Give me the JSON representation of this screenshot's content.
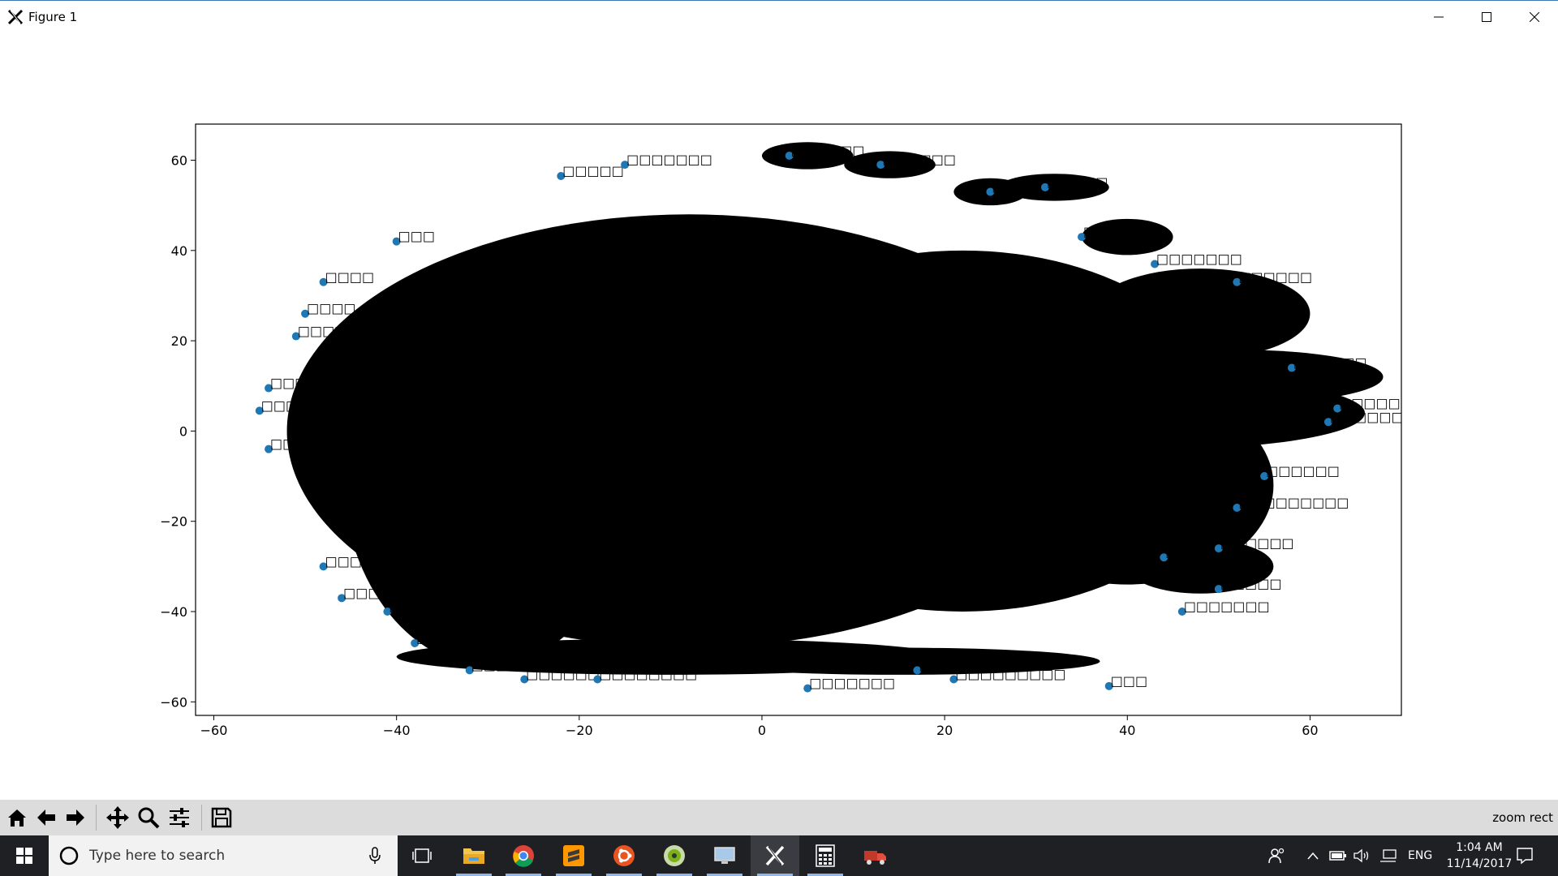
{
  "window": {
    "title": "Figure 1"
  },
  "chart_data": {
    "type": "scatter",
    "title": "",
    "xlabel": "",
    "ylabel": "",
    "xlim": [
      -62,
      70
    ],
    "ylim": [
      -63,
      68
    ],
    "xticks": [
      -60,
      -40,
      -20,
      0,
      20,
      40,
      60
    ],
    "yticks": [
      -60,
      -40,
      -20,
      0,
      20,
      40,
      60
    ],
    "xtick_labels": [
      "−60",
      "−40",
      "−20",
      "0",
      "20",
      "40",
      "60"
    ],
    "ytick_labels": [
      "−60",
      "−40",
      "−20",
      "0",
      "20",
      "40",
      "60"
    ],
    "marker_color": "#1f77b4",
    "label_color": "#000000",
    "grid": false,
    "points": [
      {
        "x": -55,
        "y": 4.5,
        "label": "□□□□□□"
      },
      {
        "x": -54,
        "y": 9.5,
        "label": "□□□□□"
      },
      {
        "x": -54,
        "y": -4,
        "label": "□□□□"
      },
      {
        "x": -51,
        "y": 21,
        "label": "□□□□□"
      },
      {
        "x": -50,
        "y": 26,
        "label": "□□□□"
      },
      {
        "x": -48,
        "y": 33,
        "label": "□□□□"
      },
      {
        "x": -48,
        "y": -30,
        "label": "□□□□"
      },
      {
        "x": -46,
        "y": -37,
        "label": "□□□□"
      },
      {
        "x": -41,
        "y": -40,
        "label": "□□□□"
      },
      {
        "x": -40,
        "y": 42,
        "label": "□□□"
      },
      {
        "x": -38,
        "y": -47,
        "label": "□□□□"
      },
      {
        "x": -32,
        "y": -53,
        "label": "□□□□□"
      },
      {
        "x": -26,
        "y": -55,
        "label": "□□□□□□"
      },
      {
        "x": -22,
        "y": 56.5,
        "label": "□□□□□"
      },
      {
        "x": -18,
        "y": -55,
        "label": "□□□□□□□□"
      },
      {
        "x": -15,
        "y": 59,
        "label": "□□□□□□□"
      },
      {
        "x": 3,
        "y": 61,
        "label": "□□□□□□"
      },
      {
        "x": 5,
        "y": -57,
        "label": "□□□□□□□"
      },
      {
        "x": 13,
        "y": 59,
        "label": "□□□□□□"
      },
      {
        "x": 17,
        "y": -53,
        "label": "□□□□□□□"
      },
      {
        "x": 21,
        "y": -55,
        "label": "□□□□□□□□□"
      },
      {
        "x": 25,
        "y": 53,
        "label": "□□□□"
      },
      {
        "x": 31,
        "y": 54,
        "label": "□□□□□"
      },
      {
        "x": 35,
        "y": 43,
        "label": "□□□□□"
      },
      {
        "x": 38,
        "y": -56.5,
        "label": "□□□"
      },
      {
        "x": 43,
        "y": 37,
        "label": "□□□□□□□"
      },
      {
        "x": 44,
        "y": -28,
        "label": "□□□□□□□"
      },
      {
        "x": 46,
        "y": -40,
        "label": "□□□□□□□"
      },
      {
        "x": 50,
        "y": -35,
        "label": "□□□□□"
      },
      {
        "x": 52,
        "y": 33,
        "label": "□□□□□□"
      },
      {
        "x": 58,
        "y": 14,
        "label": "□□□□□□"
      },
      {
        "x": 62,
        "y": 2,
        "label": "□□□□□□□"
      },
      {
        "x": 63,
        "y": 5,
        "label": "□□□□□□"
      },
      {
        "x": 55,
        "y": -10,
        "label": "□□□□□□"
      },
      {
        "x": 52,
        "y": -17,
        "label": "□□□□□□□□□"
      },
      {
        "x": 50,
        "y": -26,
        "label": "□□□□□□"
      }
    ]
  },
  "toolbar": {
    "buttons": [
      {
        "name": "home-button",
        "icon": "home-icon"
      },
      {
        "name": "back-button",
        "icon": "arrow-left-icon"
      },
      {
        "name": "forward-button",
        "icon": "arrow-right-icon"
      },
      {
        "name": "pan-button",
        "icon": "move-icon"
      },
      {
        "name": "zoom-button",
        "icon": "magnifier-icon"
      },
      {
        "name": "subplots-button",
        "icon": "sliders-icon"
      },
      {
        "name": "save-button",
        "icon": "floppy-icon"
      }
    ],
    "status": "zoom rect"
  },
  "taskbar": {
    "search_placeholder": "Type here to search",
    "apps": [
      {
        "name": "task-view",
        "icon": "task-view-icon"
      },
      {
        "name": "file-explorer",
        "icon": "folder-icon"
      },
      {
        "name": "chrome",
        "icon": "chrome-icon"
      },
      {
        "name": "sublime-text",
        "icon": "sublime-icon"
      },
      {
        "name": "ubuntu",
        "icon": "ubuntu-icon"
      },
      {
        "name": "app-green",
        "icon": "green-circle-icon"
      },
      {
        "name": "remote-desktop",
        "icon": "monitor-icon"
      },
      {
        "name": "xming",
        "icon": "x-icon"
      },
      {
        "name": "calculator",
        "icon": "calculator-icon"
      },
      {
        "name": "truck-app",
        "icon": "truck-icon"
      }
    ],
    "tray_language": "ENG",
    "time": "1:04 AM",
    "date": "11/14/2017"
  }
}
